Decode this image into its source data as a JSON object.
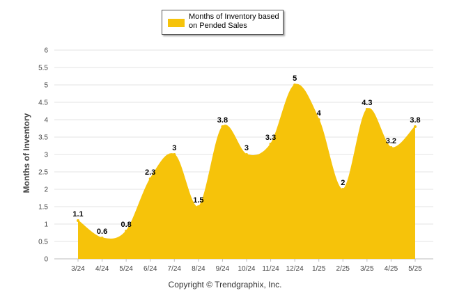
{
  "chart_data": {
    "type": "area",
    "categories": [
      "3/24",
      "4/24",
      "5/24",
      "6/24",
      "7/24",
      "8/24",
      "9/24",
      "10/24",
      "11/24",
      "12/24",
      "1/25",
      "2/25",
      "3/25",
      "4/25",
      "5/25"
    ],
    "series": [
      {
        "name": "Months of Inventory based on Pended Sales",
        "values": [
          1.1,
          0.6,
          0.8,
          2.3,
          3,
          1.5,
          3.8,
          3,
          3.3,
          5,
          4,
          2,
          4.3,
          3.2,
          3.8
        ],
        "labels": [
          "1.1",
          "0.6",
          "0.8",
          "2.3",
          "3",
          "1.5",
          "3.8",
          "3",
          "3.3",
          "5",
          "4",
          "2",
          "4.3",
          "3.2",
          "3.8"
        ]
      }
    ],
    "ylabel": "Months of Inventory",
    "xlabel": "",
    "ylim": [
      0,
      6
    ],
    "yticks": [
      0,
      0.5,
      1,
      1.5,
      2,
      2.5,
      3,
      3.5,
      4,
      4.5,
      5,
      5.5,
      6
    ],
    "ytick_labels": [
      "0",
      "0.5",
      "1",
      "1.5",
      "2",
      "2.5",
      "3",
      "3.5",
      "4",
      "4.5",
      "5",
      "5.5",
      "6"
    ],
    "grid": true,
    "legend_position": "top-center",
    "colors": {
      "area": "#f6c30a",
      "grid": "#e3e3e3",
      "axis_text": "#444444"
    }
  },
  "legend": {
    "label": "Months of Inventory based on Pended Sales"
  },
  "footer": {
    "credit": "Copyright © Trendgraphix, Inc."
  }
}
